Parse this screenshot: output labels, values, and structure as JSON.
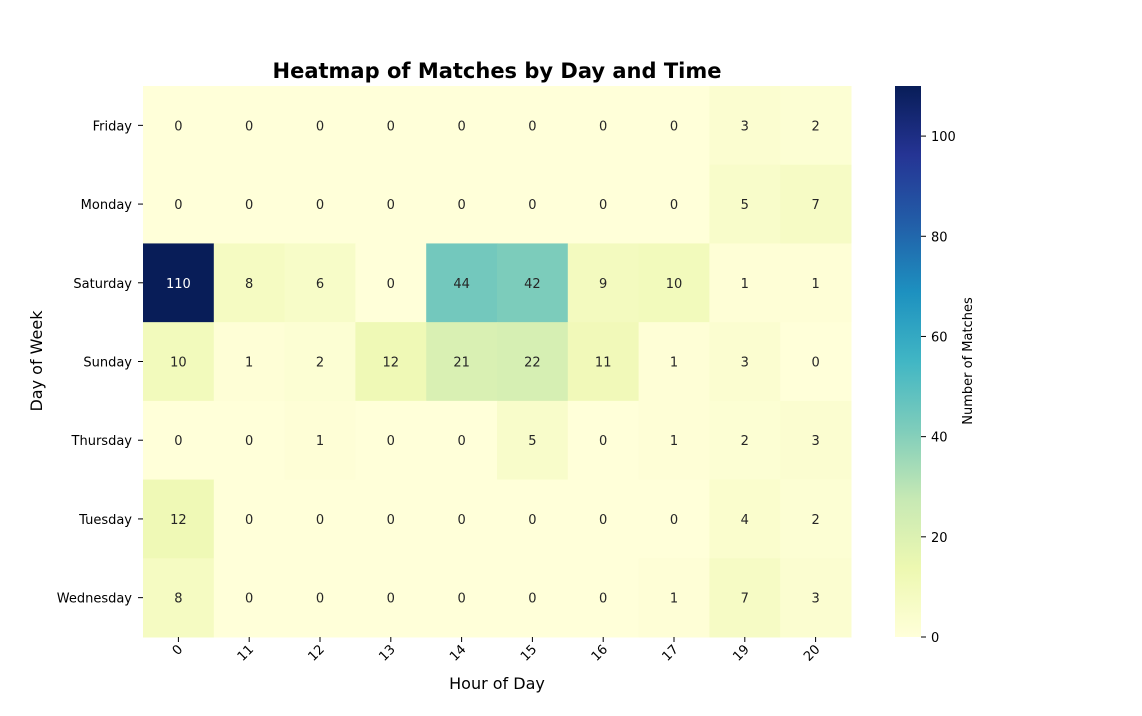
{
  "chart_data": {
    "type": "heatmap",
    "title": "Heatmap of Matches by Day and Time",
    "xlabel": "Hour of Day",
    "ylabel": "Day of Week",
    "x": [
      "0",
      "11",
      "12",
      "13",
      "14",
      "15",
      "16",
      "17",
      "19",
      "20"
    ],
    "y": [
      "Friday",
      "Monday",
      "Saturday",
      "Sunday",
      "Thursday",
      "Tuesday",
      "Wednesday"
    ],
    "values": [
      [
        0,
        0,
        0,
        0,
        0,
        0,
        0,
        0,
        3,
        2
      ],
      [
        0,
        0,
        0,
        0,
        0,
        0,
        0,
        0,
        5,
        7
      ],
      [
        110,
        8,
        6,
        0,
        44,
        42,
        9,
        10,
        1,
        1
      ],
      [
        10,
        1,
        2,
        12,
        21,
        22,
        11,
        1,
        3,
        0
      ],
      [
        0,
        0,
        1,
        0,
        0,
        5,
        0,
        1,
        2,
        3
      ],
      [
        12,
        0,
        0,
        0,
        0,
        0,
        0,
        0,
        4,
        2
      ],
      [
        8,
        0,
        0,
        0,
        0,
        0,
        0,
        1,
        7,
        3
      ]
    ],
    "colorbar": {
      "label": "Number of Matches",
      "ticks": [
        0,
        20,
        40,
        60,
        80,
        100
      ],
      "range": [
        0,
        110
      ],
      "colormap": "YlGnBu"
    },
    "annotated": true,
    "grid": false
  }
}
